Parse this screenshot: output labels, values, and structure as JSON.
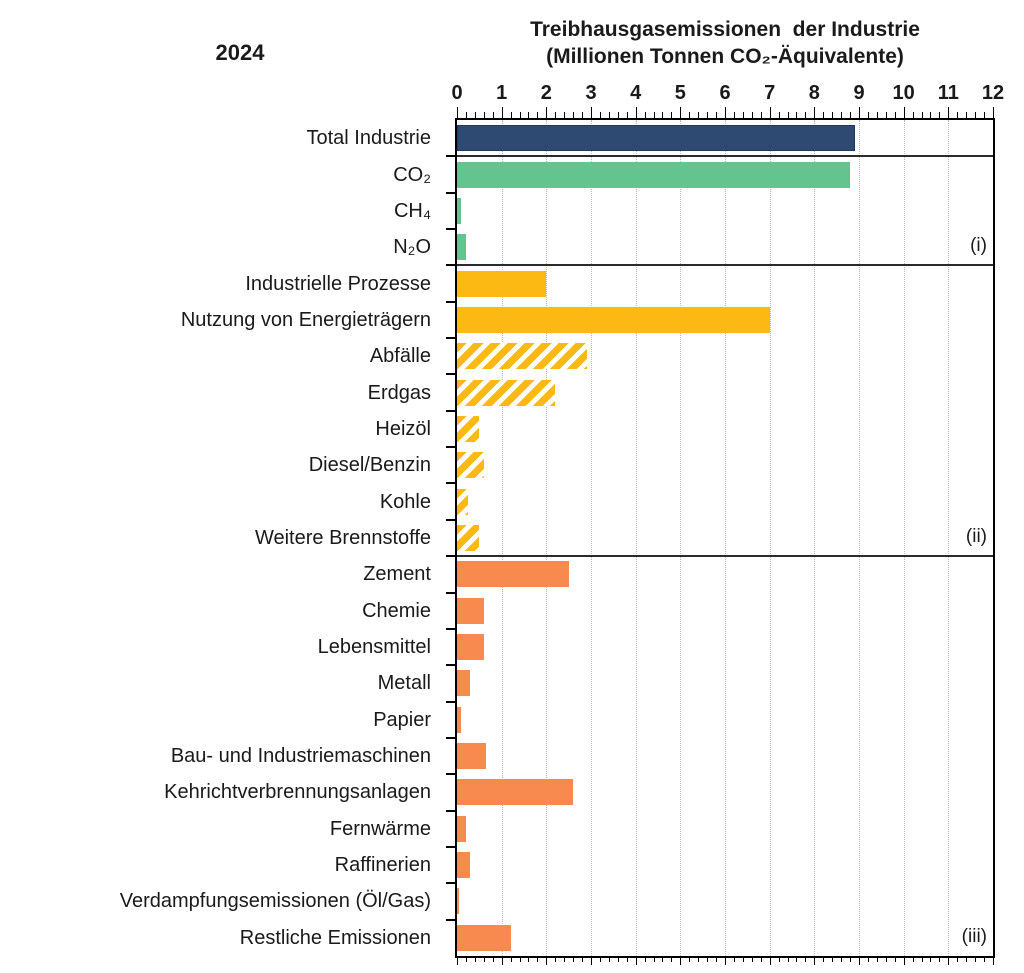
{
  "chart_data": {
    "type": "bar",
    "orientation": "horizontal",
    "year_label": "2024",
    "title": "Treibhausgasemissionen  der Industrie",
    "subtitle": "(Millionen Tonnen CO₂-Äquivalente)",
    "xlabel": "",
    "ylabel": "",
    "xlim": [
      0,
      12
    ],
    "x_ticks": [
      0,
      1,
      2,
      3,
      4,
      5,
      6,
      7,
      8,
      9,
      10,
      11,
      12
    ],
    "minor_tick_step": 0.2,
    "grid": {
      "vertical_every": 1,
      "style": "dotted",
      "color": "#b8b8b8"
    },
    "legend_position": "none",
    "colors": {
      "total_bar": "#2E4A73",
      "gas_bar": "#63C48F",
      "energy_bar": "#FCB813",
      "sector_bar": "#F8894F",
      "axis": "#000000",
      "divider": "#2b2b2b",
      "text": "#1a1a1a"
    },
    "sections": [
      {
        "id": "total",
        "annotation": "",
        "rows": [
          {
            "label": "Total Industrie",
            "value": 8.9,
            "style": "navy-solid"
          }
        ]
      },
      {
        "id": "gase",
        "annotation": "(i)",
        "rows": [
          {
            "label": "CO₂",
            "value": 8.8,
            "style": "green-solid"
          },
          {
            "label": "CH₄",
            "value": 0.1,
            "style": "green-solid"
          },
          {
            "label": "N₂O",
            "value": 0.2,
            "style": "green-solid"
          }
        ]
      },
      {
        "id": "quellen",
        "annotation": "(ii)",
        "rows": [
          {
            "label": "Industrielle Prozesse",
            "value": 2.0,
            "style": "yellow-solid"
          },
          {
            "label": "Nutzung von Energieträgern",
            "value": 7.0,
            "style": "yellow-solid"
          },
          {
            "label": "Abfälle",
            "value": 2.9,
            "style": "yellow-hatched"
          },
          {
            "label": "Erdgas",
            "value": 2.2,
            "style": "yellow-hatched"
          },
          {
            "label": "Heizöl",
            "value": 0.5,
            "style": "yellow-hatched"
          },
          {
            "label": "Diesel/Benzin",
            "value": 0.6,
            "style": "yellow-hatched"
          },
          {
            "label": "Kohle",
            "value": 0.25,
            "style": "yellow-hatched"
          },
          {
            "label": "Weitere Brennstoffe",
            "value": 0.5,
            "style": "yellow-hatched"
          }
        ]
      },
      {
        "id": "branchen",
        "annotation": "(iii)",
        "rows": [
          {
            "label": "Zement",
            "value": 2.5,
            "style": "orange-solid"
          },
          {
            "label": "Chemie",
            "value": 0.6,
            "style": "orange-solid"
          },
          {
            "label": "Lebensmittel",
            "value": 0.6,
            "style": "orange-solid"
          },
          {
            "label": "Metall",
            "value": 0.3,
            "style": "orange-solid"
          },
          {
            "label": "Papier",
            "value": 0.1,
            "style": "orange-solid"
          },
          {
            "label": "Bau- und Industriemaschinen",
            "value": 0.65,
            "style": "orange-solid"
          },
          {
            "label": "Kehrichtverbrennungsanlagen",
            "value": 2.6,
            "style": "orange-solid"
          },
          {
            "label": "Fernwärme",
            "value": 0.2,
            "style": "orange-solid"
          },
          {
            "label": "Raffinerien",
            "value": 0.3,
            "style": "orange-solid"
          },
          {
            "label": "Verdampfungsemissionen (Öl/Gas)",
            "value": 0.05,
            "style": "orange-solid"
          },
          {
            "label": "Restliche Emissionen",
            "value": 1.2,
            "style": "orange-solid"
          }
        ]
      }
    ]
  }
}
